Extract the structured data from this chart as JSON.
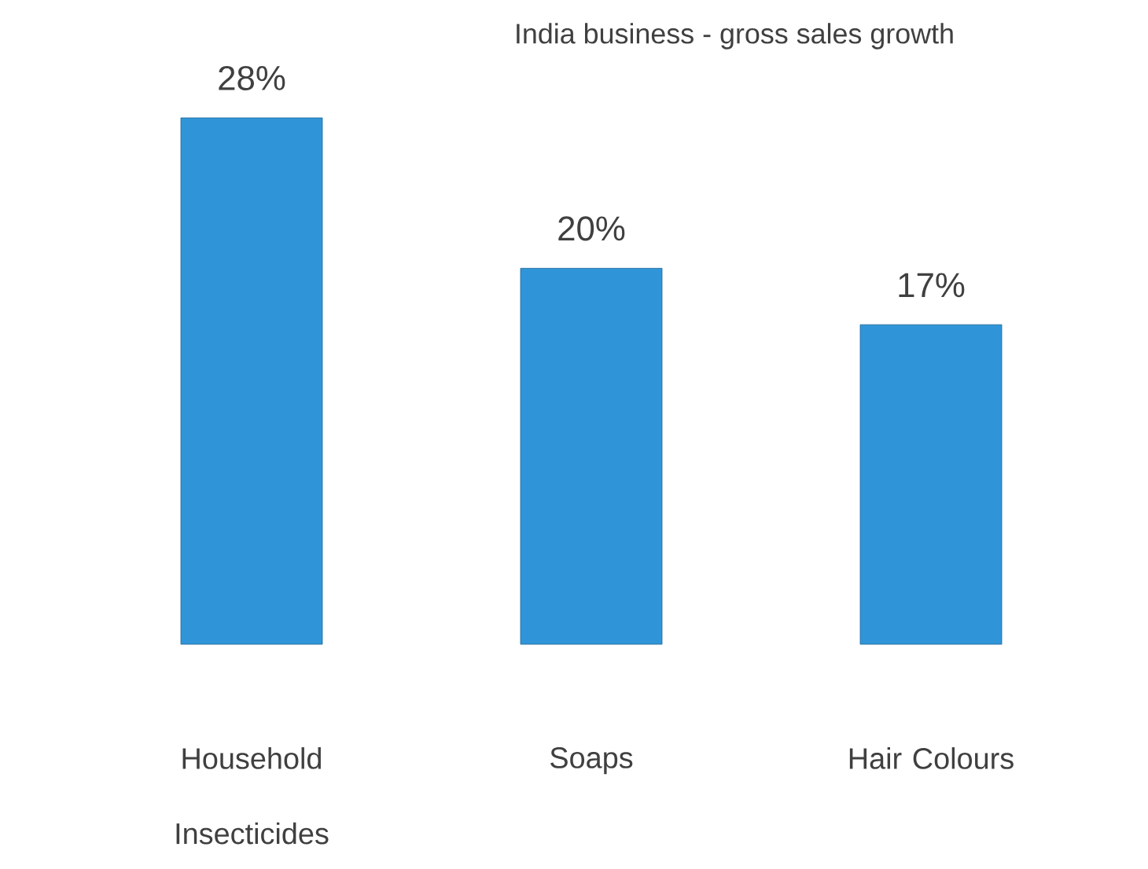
{
  "chart_data": {
    "type": "bar",
    "title": "India business - gross sales growth",
    "categories": [
      "Household Insecticides",
      "Soaps",
      "Hair Colours"
    ],
    "values": [
      28,
      20,
      17
    ],
    "color": "#2f95d8",
    "value_labels": [
      "28%",
      "20%",
      "17%"
    ]
  }
}
